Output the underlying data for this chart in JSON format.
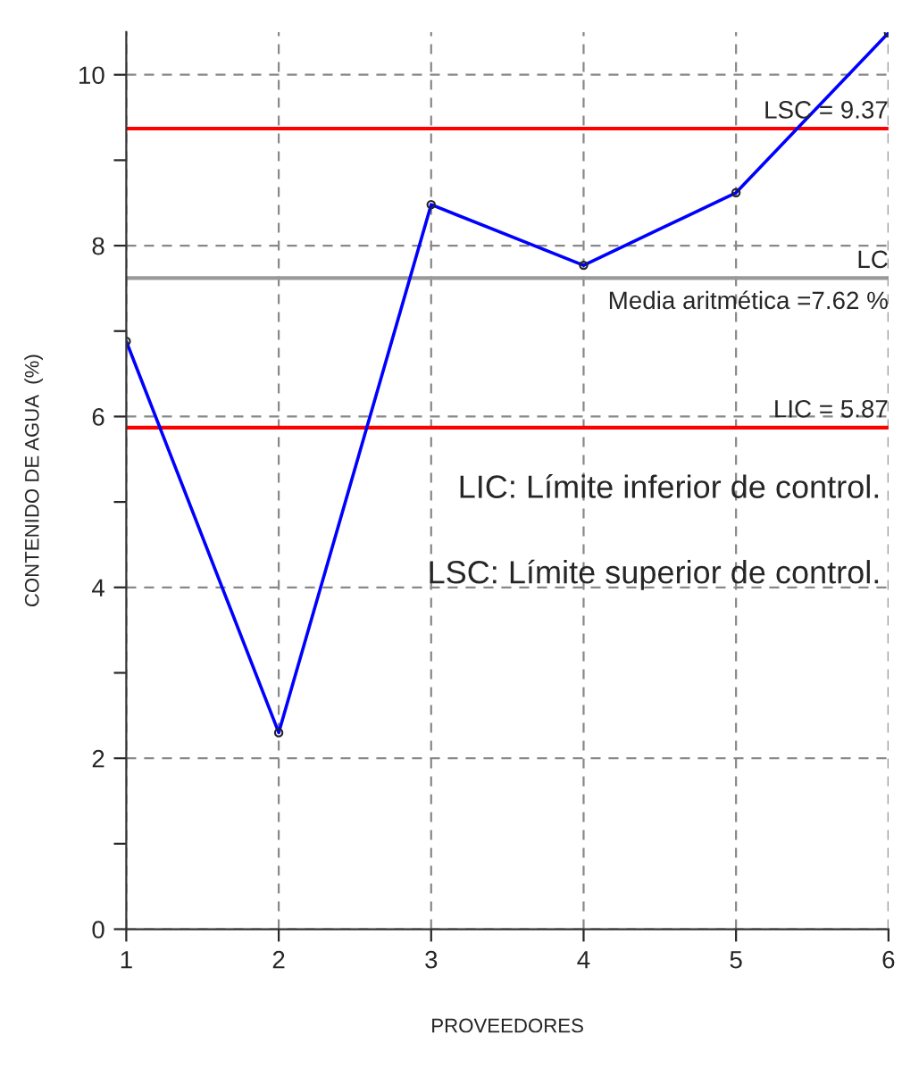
{
  "chart_data": {
    "type": "line",
    "xlabel": "PROVEEDORES",
    "ylabel": "CONTENIDO DE AGUA  (%)",
    "x": [
      1,
      2,
      3,
      4,
      5,
      6
    ],
    "series": [
      {
        "color": "#0000ff",
        "values": [
          6.88,
          2.3,
          8.48,
          7.77,
          8.62,
          10.49
        ]
      }
    ],
    "marker": "circle",
    "line_style": "solid",
    "grid": true,
    "xlim": [
      1,
      6
    ],
    "xticks": [
      1,
      2,
      3,
      4,
      5,
      6
    ],
    "ylim": [
      0,
      10.5
    ],
    "yticks": [
      0,
      {
        "value": 1,
        "label": null
      },
      2,
      {
        "value": 3,
        "label": null
      },
      4,
      {
        "value": 5,
        "label": null
      },
      6,
      {
        "value": 7,
        "label": null
      },
      8,
      {
        "value": 9,
        "label": null
      },
      10
    ],
    "ref_lines": [
      {
        "axis": "y",
        "value": 9.37,
        "label": "LSC = 9.37",
        "color": "#ff0000"
      },
      {
        "axis": "y",
        "value": 7.62,
        "label": "LC",
        "color": "#999999"
      },
      {
        "axis": "y",
        "value": 5.87,
        "label": "LIC = 5.87",
        "color": "#ff0000"
      }
    ],
    "annotations": [
      {
        "text": "Media aritmética =7.62 %",
        "x": 6,
        "y": 7.62
      },
      "LIC: Límite inferior de control.",
      "LSC: Límite superior de control."
    ]
  }
}
